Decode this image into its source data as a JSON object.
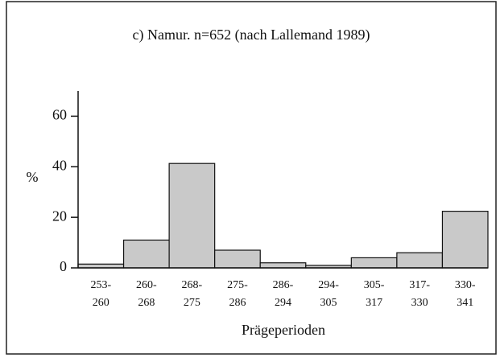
{
  "chart_data": {
    "type": "bar",
    "title": "c) Namur. n=652 (nach Lallemand 1989)",
    "ylabel": "%",
    "xlabel": "Prägeperioden",
    "categories": [
      [
        "253-",
        "260"
      ],
      [
        "260-",
        "268"
      ],
      [
        "268-",
        "275"
      ],
      [
        "275-",
        "286"
      ],
      [
        "286-",
        "294"
      ],
      [
        "294-",
        "305"
      ],
      [
        "305-",
        "317"
      ],
      [
        "317-",
        "330"
      ],
      [
        "330-",
        "341"
      ]
    ],
    "values": [
      1.5,
      11,
      41.3,
      7,
      2,
      1,
      4,
      6,
      22.4
    ],
    "color": "#c9c9c9",
    "ylim": [
      0,
      70
    ],
    "yticks": [
      0,
      20,
      40,
      60
    ]
  }
}
